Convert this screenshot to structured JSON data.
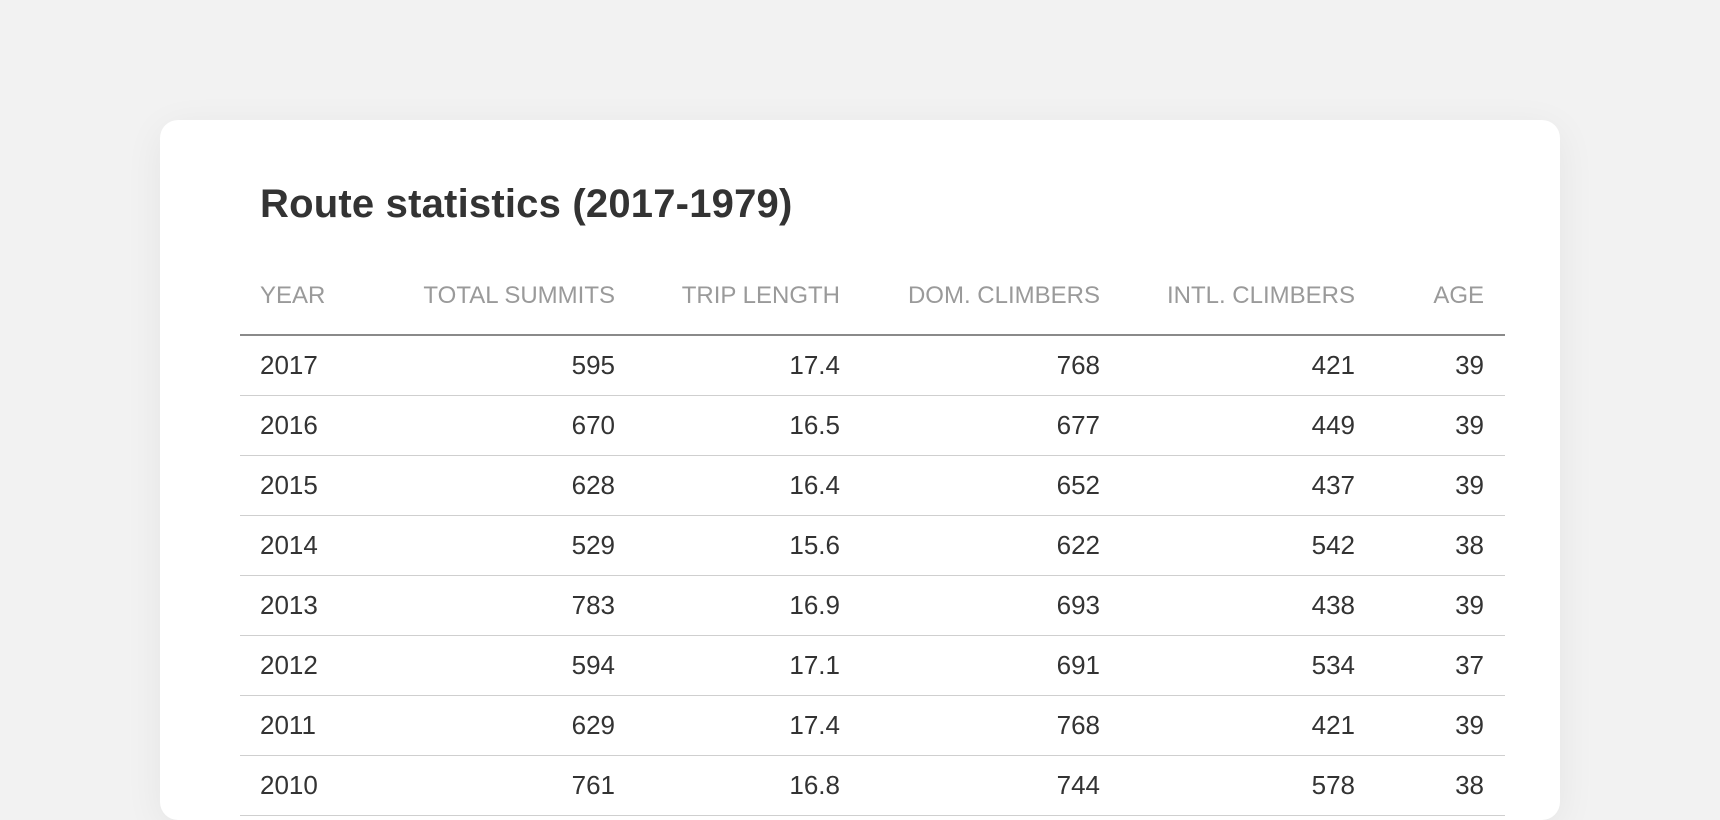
{
  "title": "Route statistics (2017-1979)",
  "table": {
    "columns": [
      "YEAR",
      "TOTAL SUMMITS",
      "TRIP LENGTH",
      "DOM. CLIMBERS",
      "INTL. CLIMBERS",
      "AGE"
    ],
    "rows": [
      [
        "2017",
        "595",
        "17.4",
        "768",
        "421",
        "39"
      ],
      [
        "2016",
        "670",
        "16.5",
        "677",
        "449",
        "39"
      ],
      [
        "2015",
        "628",
        "16.4",
        "652",
        "437",
        "39"
      ],
      [
        "2014",
        "529",
        "15.6",
        "622",
        "542",
        "38"
      ],
      [
        "2013",
        "783",
        "16.9",
        "693",
        "438",
        "39"
      ],
      [
        "2012",
        "594",
        "17.1",
        "691",
        "534",
        "37"
      ],
      [
        "2011",
        "629",
        "17.4",
        "768",
        "421",
        "39"
      ],
      [
        "2010",
        "761",
        "16.8",
        "744",
        "578",
        "38"
      ]
    ]
  }
}
